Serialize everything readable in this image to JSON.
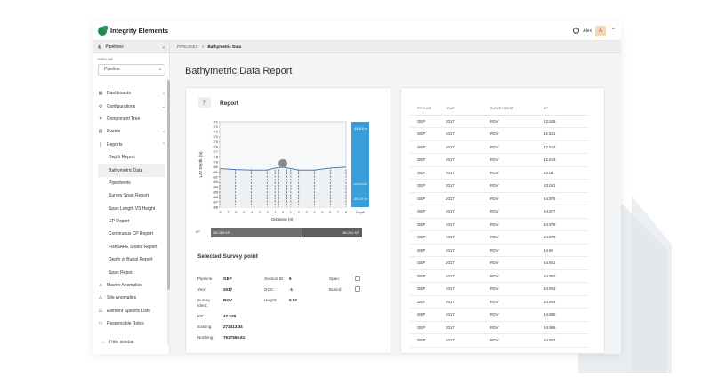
{
  "app": {
    "title": "Integrity Elements",
    "user": "Alex",
    "avatar_initial": "A"
  },
  "subbar": {
    "pipelines_label": "Pipelines",
    "crumb_root": "PIPELINES",
    "crumb_sep": ">",
    "crumb_current": "Bathymetric Data"
  },
  "sidebar": {
    "pipeline_label": "PIPELINE",
    "pipeline_value": "Pipeline",
    "items": [
      {
        "label": "Dashboards",
        "icon": "dashboard-icon",
        "chev": "⌄"
      },
      {
        "label": "Configurations",
        "icon": "gear-icon",
        "chev": "⌄"
      },
      {
        "label": "Component Tree",
        "icon": "tree-icon",
        "chev": ""
      },
      {
        "label": "Events",
        "icon": "calendar-icon",
        "chev": "⌄"
      },
      {
        "label": "Reports",
        "icon": "document-icon",
        "chev": "⌃"
      }
    ],
    "subitems": [
      "Depth Report",
      "Bathymetric Data",
      "Pipesheets",
      "Survey Span Report",
      "Span Length VS Height",
      "CP Report",
      "Continuous CP Report",
      "FishSAFE Spans Report",
      "Depth of Burial Report",
      "Span Report"
    ],
    "items2": [
      {
        "label": "Master Anomalies",
        "icon": "warning-icon"
      },
      {
        "label": "Site Anomalies",
        "icon": "warning-icon"
      },
      {
        "label": "Element Specific Lists",
        "icon": "list-icon"
      },
      {
        "label": "Responsible Roles",
        "icon": "roles-icon"
      }
    ],
    "hide_label": "Hide sidebar"
  },
  "page": {
    "title": "Bathymetric Data Report"
  },
  "report": {
    "title": "Report",
    "back_icon": "collapse-left-icon",
    "kp_label": "KP",
    "kp_start": "36.263 KP",
    "kp_end": "46.262 KP",
    "depth_top": "-48.63 m",
    "depth_bottom": "-59.17 m",
    "depth_label": "Depth"
  },
  "chart_data": {
    "type": "line",
    "xlabel": "Distance (m)",
    "ylabel": "LAT Depth (m)",
    "x_ticks": [
      -8,
      -7,
      -6,
      -5,
      -4,
      -3,
      -2,
      -1,
      0,
      1,
      2,
      3,
      4,
      5,
      6,
      7,
      8
    ],
    "y_ticks": [
      -71,
      -72,
      -73,
      -74,
      -75,
      -76,
      -77,
      -78,
      -79,
      -80,
      -81,
      -82,
      -83,
      -84,
      -85,
      -86,
      -87,
      -88
    ],
    "xlim": [
      -8,
      8
    ],
    "ylim": [
      -88,
      -71
    ],
    "seabed_x": [
      -8,
      -6,
      -4,
      -2,
      -1,
      0,
      1,
      2,
      4,
      6,
      8
    ],
    "seabed_y": [
      -80.3,
      -80.5,
      -80.6,
      -80.6,
      -80.2,
      -80.0,
      -80.3,
      -80.6,
      -80.6,
      -80.2,
      -80.0
    ],
    "pipe": {
      "x": 0,
      "y": -79.3
    },
    "markers_x": [
      -8,
      -6,
      -4,
      -2,
      -1,
      -0.5,
      0.5,
      1,
      2,
      4,
      6,
      8
    ],
    "depth_scale_fill": [
      -48.63,
      -59.17
    ]
  },
  "selected": {
    "title": "Selected Survey point",
    "pipeline_label": "Pipeline:",
    "pipeline": "GEP",
    "year_label": "Year:",
    "year": "2017",
    "ident_label_1": "Survey",
    "ident_label_2": "Ident:",
    "ident": "ROV",
    "kp_label": "KP:",
    "kp": "42.528",
    "easting_label": "Easting:",
    "easting": "272413.34",
    "northing_label": "Northing:",
    "northing": "7637559.61",
    "section_label": "Section ID:",
    "section": "6",
    "doc_label": "DOC:",
    "doc": "-1",
    "height_label": "Height:",
    "height": "0.52",
    "span_label": "Span:",
    "buried_label": "Buried:"
  },
  "table": {
    "headers": [
      "PIPELINE",
      "YEAR",
      "SURVEY IDENT",
      "KP"
    ],
    "rows": [
      [
        "GEP",
        "2017",
        "ROV",
        "42.528"
      ],
      [
        "GEP",
        "2017",
        "ROV",
        "42.541"
      ],
      [
        "GEP",
        "2017",
        "ROV",
        "42.542"
      ],
      [
        "GEP",
        "2017",
        "ROV",
        "42.543"
      ],
      [
        "GEP",
        "2017",
        "ROV",
        "43.0d"
      ],
      [
        "GEP",
        "2017",
        "ROV",
        "43.041"
      ],
      [
        "GEP",
        "2017",
        "ROV",
        "44.976"
      ],
      [
        "GEP",
        "2017",
        "ROV",
        "44.977"
      ],
      [
        "GEP",
        "2017",
        "ROV",
        "44.978"
      ],
      [
        "GEP",
        "2017",
        "ROV",
        "44.979"
      ],
      [
        "GEP",
        "2017",
        "ROV",
        "44.98"
      ],
      [
        "GEP",
        "2017",
        "ROV",
        "44.981"
      ],
      [
        "GEP",
        "2017",
        "ROV",
        "44.982"
      ],
      [
        "GEP",
        "2017",
        "ROV",
        "44.983"
      ],
      [
        "GEP",
        "2017",
        "ROV",
        "44.984"
      ],
      [
        "GEP",
        "2017",
        "ROV",
        "44.985"
      ],
      [
        "GEP",
        "2017",
        "ROV",
        "44.986"
      ],
      [
        "GEP",
        "2017",
        "ROV",
        "44.987"
      ]
    ]
  },
  "colors": {
    "accent": "#3a9fd8",
    "brand": "#1f8b4c",
    "kp_bar": "#6a6a6a"
  }
}
